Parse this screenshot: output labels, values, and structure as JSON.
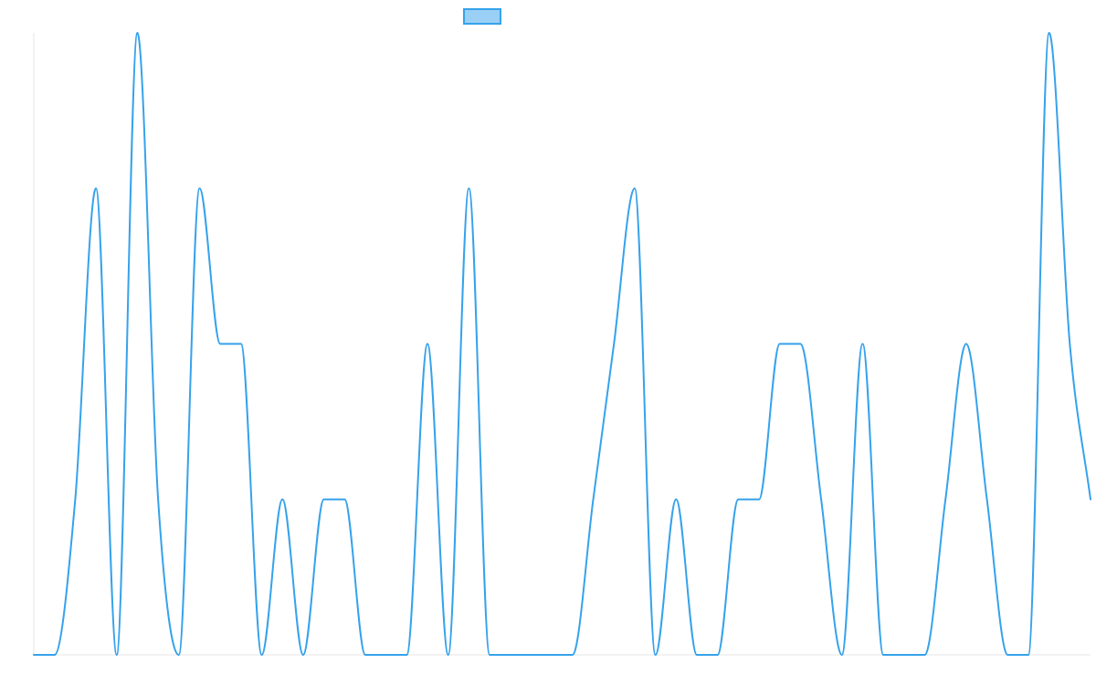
{
  "chart_data": {
    "type": "line",
    "title": "",
    "xlabel": "",
    "ylabel": "",
    "ylim": [
      0,
      4
    ],
    "grid": false,
    "legend": {
      "position": "top",
      "entries": [
        ""
      ]
    },
    "x": [
      0,
      1,
      2,
      3,
      4,
      5,
      6,
      7,
      8,
      9,
      10,
      11,
      12,
      13,
      14,
      15,
      16,
      17,
      18,
      19,
      20,
      21,
      22,
      23,
      24,
      25,
      26,
      27,
      28,
      29,
      30,
      31,
      32,
      33,
      34,
      35,
      36,
      37,
      38,
      39,
      40,
      41,
      42,
      43,
      44,
      45,
      46,
      47,
      48,
      49,
      50,
      51
    ],
    "series": [
      {
        "name": "",
        "color": "#36a2eb",
        "values": [
          0,
          0,
          1,
          3,
          0,
          4,
          1,
          0,
          3,
          2,
          2,
          0,
          1,
          0,
          1,
          1,
          0,
          0,
          0,
          2,
          0,
          3,
          0,
          0,
          0,
          0,
          0,
          1,
          2,
          3,
          0,
          1,
          0,
          0,
          1,
          1,
          2,
          2,
          1,
          0,
          2,
          0,
          0,
          0,
          1,
          2,
          1,
          0,
          0,
          4,
          2,
          1
        ]
      }
    ]
  }
}
